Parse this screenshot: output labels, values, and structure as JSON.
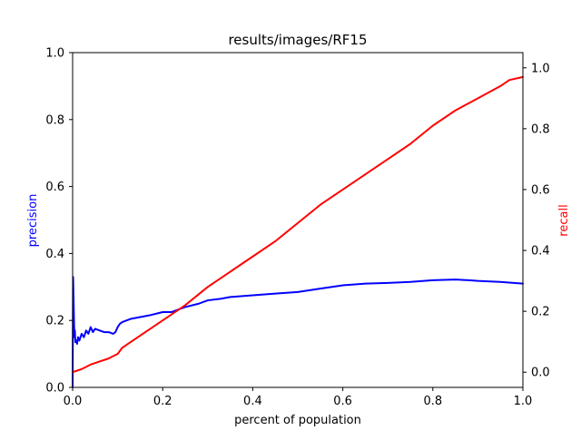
{
  "chart_data": {
    "type": "line",
    "title": "results/images/RF15",
    "xlabel": "percent of population",
    "ylabel_left": "precision",
    "ylabel_right": "recall",
    "xlim": [
      0,
      1
    ],
    "ylim_left": [
      0,
      1
    ],
    "ylim_right": [
      -0.05,
      1.05
    ],
    "x_ticks": [
      "0.0",
      "0.2",
      "0.4",
      "0.6",
      "0.8",
      "1.0"
    ],
    "y_ticks_left": [
      "0.0",
      "0.2",
      "0.4",
      "0.6",
      "0.8",
      "1.0"
    ],
    "y_ticks_right": [
      "0.0",
      "0.2",
      "0.4",
      "0.6",
      "0.8",
      "1.0"
    ],
    "grid": false,
    "colors": {
      "precision": "#0000ff",
      "recall": "#ff0000",
      "axis": "#000000"
    },
    "series": [
      {
        "axis": "left",
        "color": "#0000ff",
        "x": [
          0.0,
          0.001,
          0.002,
          0.003,
          0.004,
          0.005,
          0.006,
          0.008,
          0.01,
          0.012,
          0.015,
          0.02,
          0.025,
          0.03,
          0.035,
          0.04,
          0.045,
          0.05,
          0.06,
          0.07,
          0.08,
          0.09,
          0.095,
          0.1,
          0.105,
          0.11,
          0.12,
          0.13,
          0.15,
          0.17,
          0.2,
          0.22,
          0.25,
          0.28,
          0.3,
          0.33,
          0.35,
          0.4,
          0.45,
          0.5,
          0.55,
          0.6,
          0.65,
          0.7,
          0.75,
          0.8,
          0.85,
          0.88,
          0.9,
          0.95,
          1.0
        ],
        "y": [
          0.0,
          0.33,
          0.27,
          0.2,
          0.15,
          0.17,
          0.135,
          0.14,
          0.13,
          0.15,
          0.14,
          0.16,
          0.15,
          0.17,
          0.16,
          0.18,
          0.165,
          0.175,
          0.17,
          0.165,
          0.165,
          0.16,
          0.165,
          0.18,
          0.19,
          0.195,
          0.2,
          0.205,
          0.21,
          0.215,
          0.225,
          0.225,
          0.24,
          0.25,
          0.26,
          0.265,
          0.27,
          0.275,
          0.28,
          0.285,
          0.295,
          0.305,
          0.31,
          0.312,
          0.315,
          0.32,
          0.322,
          0.32,
          0.318,
          0.315,
          0.31
        ]
      },
      {
        "axis": "right",
        "color": "#ff0000",
        "x": [
          0.0,
          0.02,
          0.04,
          0.06,
          0.08,
          0.1,
          0.11,
          0.15,
          0.2,
          0.25,
          0.3,
          0.35,
          0.4,
          0.45,
          0.5,
          0.55,
          0.6,
          0.65,
          0.7,
          0.75,
          0.8,
          0.85,
          0.9,
          0.95,
          0.97,
          1.0
        ],
        "y": [
          0.0,
          0.01,
          0.025,
          0.035,
          0.045,
          0.06,
          0.08,
          0.12,
          0.17,
          0.22,
          0.28,
          0.33,
          0.38,
          0.43,
          0.49,
          0.55,
          0.6,
          0.65,
          0.7,
          0.75,
          0.81,
          0.86,
          0.9,
          0.94,
          0.96,
          0.97
        ]
      }
    ]
  }
}
